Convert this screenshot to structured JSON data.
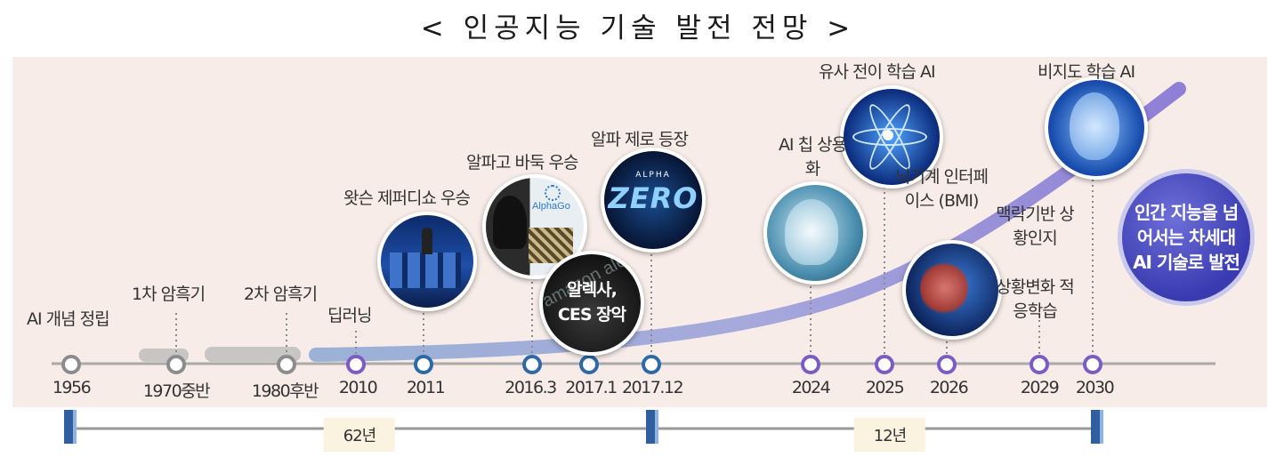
{
  "title": "< 인공지능 기술 발전 전망 >",
  "milestones": {
    "ai_concept": "AI 개념 정립",
    "winter1": "1차 암흑기",
    "winter2": "2차 암흑기",
    "deep_learning": "딥러닝",
    "watson": "왓슨 제퍼디쇼 우승",
    "alphago": "알파고 바둑 우승",
    "alexa": "알렉사, CES 장악",
    "alphazero": "알파 제로 등장",
    "ai_chip": "AI 칩 상용화",
    "transfer": "유사 전이 학습 AI",
    "bmi": "뇌기계 인터페이스 (BMI)",
    "context": "맥락기반 상황인지",
    "adaptive": "상황변화 적응학습",
    "unsupervised": "비지도 학습 AI"
  },
  "years": [
    "1956",
    "1970중반",
    "1980후반",
    "2010",
    "2011",
    "2016.3",
    "2017.1",
    "2017.12",
    "2024",
    "2025",
    "2026",
    "2029",
    "2030"
  ],
  "image_text": {
    "alphago_logo": "AlphaGo",
    "alphazero_small": "ALPHA",
    "alphazero_big": "ZERO",
    "alexa_bg": "amazon alexa"
  },
  "final_goal": "인간 지능을 넘어서는 차세대 AI 기술로 발전",
  "spans": {
    "first": "62년",
    "second": "12년"
  },
  "colors": {
    "gray_node": "#8c8c8c",
    "purple_node": "#7b5cc4",
    "blue_node": "#2e6aa8",
    "curve": "#8c8cd6",
    "final": "#4a4bc0"
  }
}
